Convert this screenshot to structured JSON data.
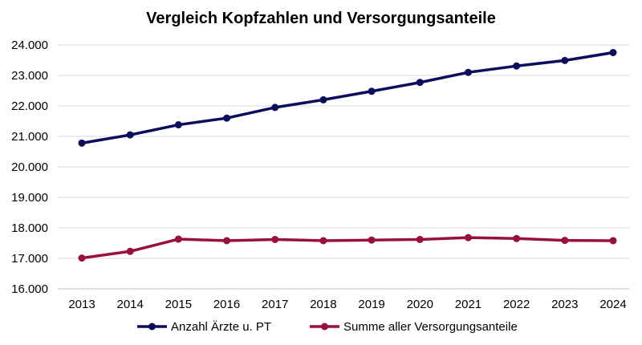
{
  "chart_data": {
    "type": "line",
    "title": "Vergleich Kopfzahlen und Versorgungsanteile",
    "xlabel": "",
    "ylabel": "",
    "ylim": [
      16000,
      24000
    ],
    "yticks": [
      "16.000",
      "17.000",
      "18.000",
      "19.000",
      "20.000",
      "21.000",
      "22.000",
      "23.000",
      "24.000"
    ],
    "categories": [
      "2013",
      "2014",
      "2015",
      "2016",
      "2017",
      "2018",
      "2019",
      "2020",
      "2021",
      "2022",
      "2023",
      "2024"
    ],
    "grid": true,
    "legend_position": "bottom",
    "series": [
      {
        "name": "Anzahl Ärzte u. PT",
        "color": "#0d0d5e",
        "values": [
          20780,
          21050,
          21380,
          21600,
          21950,
          22200,
          22480,
          22770,
          23100,
          23310,
          23490,
          23750
        ]
      },
      {
        "name": "Summe aller Versorgungsanteile",
        "color": "#990f3d",
        "values": [
          17010,
          17230,
          17630,
          17580,
          17620,
          17580,
          17600,
          17620,
          17680,
          17650,
          17590,
          17580
        ]
      }
    ]
  }
}
